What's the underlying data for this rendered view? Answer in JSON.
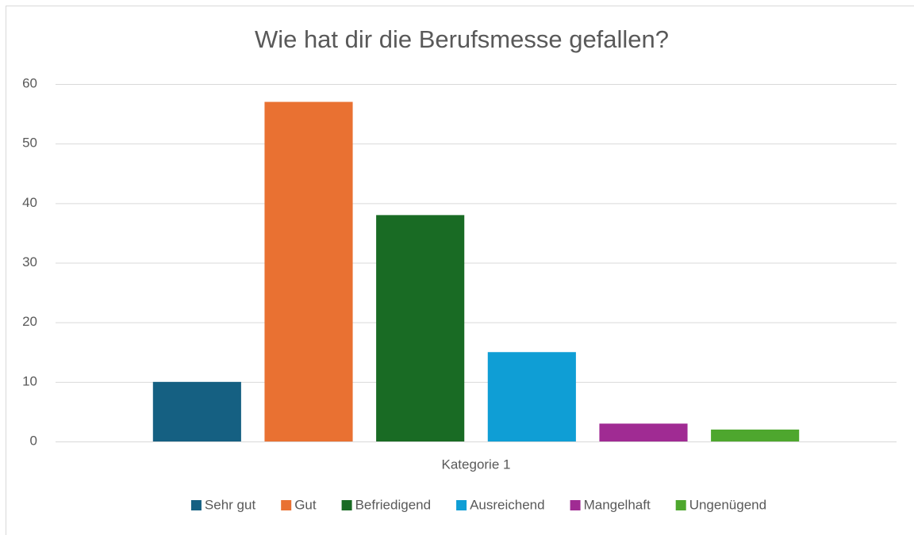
{
  "chart_data": {
    "type": "bar",
    "title": "Wie hat dir die Berufsmesse gefallen?",
    "categories": [
      "Kategorie 1"
    ],
    "series": [
      {
        "name": "Sehr gut",
        "color": "#156082",
        "values": [
          10
        ]
      },
      {
        "name": "Gut",
        "color": "#e97132",
        "values": [
          57
        ]
      },
      {
        "name": "Befriedigend",
        "color": "#196b24",
        "values": [
          38
        ]
      },
      {
        "name": "Ausreichend",
        "color": "#0f9ed5",
        "values": [
          15
        ]
      },
      {
        "name": "Mangelhaft",
        "color": "#a02b93",
        "values": [
          3
        ]
      },
      {
        "name": "Ungenügend",
        "color": "#4ea72e",
        "values": [
          2
        ]
      }
    ],
    "ylim": [
      0,
      60
    ],
    "yticks": [
      0,
      10,
      20,
      30,
      40,
      50,
      60
    ],
    "grid": true,
    "legend": "bottom"
  }
}
